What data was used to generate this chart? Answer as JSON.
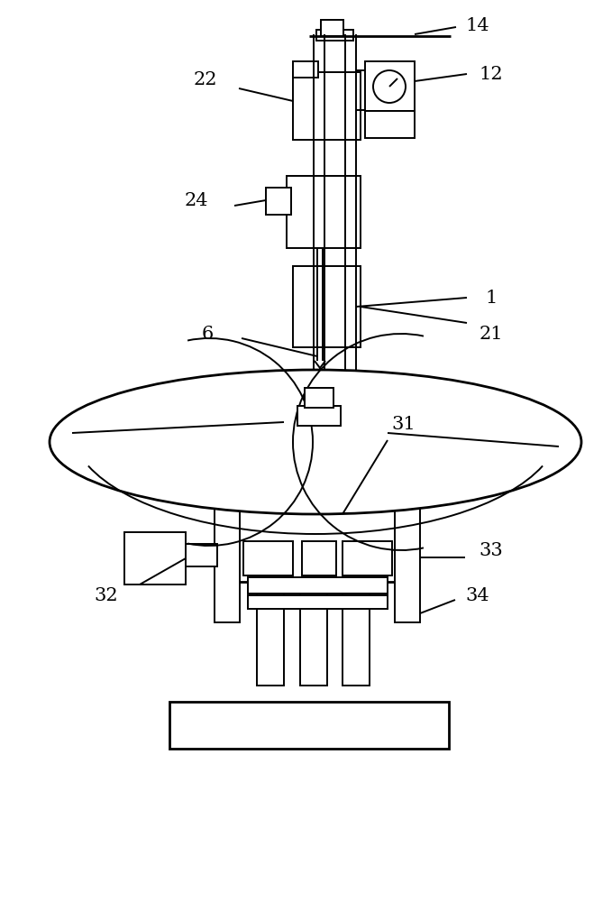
{
  "bg_color": "#ffffff",
  "line_color": "#000000",
  "lw": 1.4,
  "lw_thick": 2.0,
  "fig_width": 6.79,
  "fig_height": 10.0
}
